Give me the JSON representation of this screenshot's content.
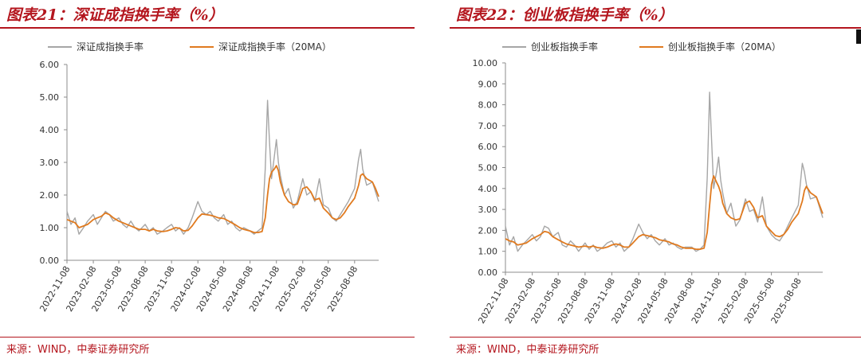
{
  "charts": [
    {
      "title": "图表21：深证成指换手率（%）",
      "source": "来源：WIND，中泰证券研究所",
      "chart_data": {
        "type": "line",
        "title": "图表21：深证成指换手率（%）",
        "xlabel": "",
        "ylabel": "",
        "ylim": [
          0,
          6
        ],
        "yticks": [
          "0.00",
          "1.00",
          "2.00",
          "3.00",
          "4.00",
          "5.00",
          "6.00"
        ],
        "x_range": [
          "2022-11-08",
          "2025-10-31"
        ],
        "xticks": [
          "2022-11-08",
          "2023-02-08",
          "2023-05-08",
          "2023-08-08",
          "2023-11-08",
          "2024-02-08",
          "2024-05-08",
          "2024-08-08",
          "2024-11-08",
          "2025-02-08",
          "2025-05-08",
          "2025-08-08"
        ],
        "grid": false,
        "legend": "top",
        "series": [
          {
            "name": "深证成指换手率",
            "color": "#a6a6a6",
            "x": [
              "2022-11-08",
              "2022-11-22",
              "2022-12-06",
              "2022-12-20",
              "2023-01-05",
              "2023-01-19",
              "2023-02-08",
              "2023-02-22",
              "2023-03-08",
              "2023-03-22",
              "2023-04-05",
              "2023-04-19",
              "2023-05-08",
              "2023-05-22",
              "2023-06-05",
              "2023-06-19",
              "2023-07-03",
              "2023-07-17",
              "2023-08-08",
              "2023-08-22",
              "2023-09-05",
              "2023-09-19",
              "2023-10-09",
              "2023-10-23",
              "2023-11-08",
              "2023-11-22",
              "2023-12-06",
              "2023-12-20",
              "2024-01-05",
              "2024-01-19",
              "2024-02-08",
              "2024-02-22",
              "2024-03-08",
              "2024-03-22",
              "2024-04-05",
              "2024-04-19",
              "2024-05-08",
              "2024-05-22",
              "2024-06-05",
              "2024-06-19",
              "2024-07-03",
              "2024-07-17",
              "2024-08-08",
              "2024-08-22",
              "2024-09-05",
              "2024-09-19",
              "2024-09-30",
              "2024-10-08",
              "2024-10-15",
              "2024-10-22",
              "2024-11-01",
              "2024-11-08",
              "2024-11-15",
              "2024-11-22",
              "2024-12-06",
              "2024-12-20",
              "2025-01-06",
              "2025-01-20",
              "2025-02-08",
              "2025-02-22",
              "2025-03-08",
              "2025-03-22",
              "2025-04-07",
              "2025-04-21",
              "2025-05-08",
              "2025-05-22",
              "2025-06-05",
              "2025-06-19",
              "2025-07-03",
              "2025-07-17",
              "2025-08-08",
              "2025-08-22",
              "2025-08-29",
              "2025-09-05",
              "2025-09-19",
              "2025-10-09",
              "2025-10-20",
              "2025-10-31"
            ],
            "values": [
              1.5,
              1.1,
              1.3,
              0.8,
              1.0,
              1.2,
              1.4,
              1.1,
              1.3,
              1.5,
              1.4,
              1.2,
              1.3,
              1.1,
              1.0,
              1.2,
              1.0,
              0.9,
              1.1,
              0.9,
              1.0,
              0.8,
              0.9,
              1.0,
              1.1,
              0.9,
              1.0,
              0.8,
              1.0,
              1.3,
              1.8,
              1.5,
              1.4,
              1.5,
              1.3,
              1.2,
              1.4,
              1.1,
              1.2,
              1.0,
              0.9,
              1.0,
              0.9,
              0.8,
              0.9,
              1.0,
              2.8,
              4.9,
              3.6,
              2.5,
              3.2,
              3.7,
              3.0,
              2.6,
              2.0,
              2.2,
              1.6,
              1.8,
              2.5,
              2.0,
              2.1,
              1.8,
              2.5,
              1.7,
              1.6,
              1.3,
              1.2,
              1.4,
              1.6,
              1.8,
              2.2,
              3.1,
              3.4,
              2.8,
              2.3,
              2.4,
              2.1,
              1.8
            ]
          },
          {
            "name": "深证成指换手率（20MA）",
            "color": "#e07a1f",
            "x": [
              "2022-11-08",
              "2022-11-22",
              "2022-12-06",
              "2022-12-20",
              "2023-01-05",
              "2023-01-19",
              "2023-02-08",
              "2023-02-22",
              "2023-03-08",
              "2023-03-22",
              "2023-04-05",
              "2023-04-19",
              "2023-05-08",
              "2023-05-22",
              "2023-06-05",
              "2023-06-19",
              "2023-07-03",
              "2023-07-17",
              "2023-08-08",
              "2023-08-22",
              "2023-09-05",
              "2023-09-19",
              "2023-10-09",
              "2023-10-23",
              "2023-11-08",
              "2023-11-22",
              "2023-12-06",
              "2023-12-20",
              "2024-01-05",
              "2024-01-19",
              "2024-02-08",
              "2024-02-22",
              "2024-03-08",
              "2024-03-22",
              "2024-04-05",
              "2024-04-19",
              "2024-05-08",
              "2024-05-22",
              "2024-06-05",
              "2024-06-19",
              "2024-07-03",
              "2024-07-17",
              "2024-08-08",
              "2024-08-22",
              "2024-09-05",
              "2024-09-19",
              "2024-09-30",
              "2024-10-08",
              "2024-10-15",
              "2024-10-22",
              "2024-11-01",
              "2024-11-08",
              "2024-11-15",
              "2024-11-22",
              "2024-12-06",
              "2024-12-20",
              "2025-01-06",
              "2025-01-20",
              "2025-02-08",
              "2025-02-22",
              "2025-03-08",
              "2025-03-22",
              "2025-04-07",
              "2025-04-21",
              "2025-05-08",
              "2025-05-22",
              "2025-06-05",
              "2025-06-19",
              "2025-07-03",
              "2025-07-17",
              "2025-08-08",
              "2025-08-22",
              "2025-08-29",
              "2025-09-05",
              "2025-09-19",
              "2025-10-09",
              "2025-10-20",
              "2025-10-31"
            ],
            "values": [
              1.25,
              1.2,
              1.15,
              1.0,
              1.05,
              1.1,
              1.25,
              1.3,
              1.35,
              1.45,
              1.4,
              1.3,
              1.2,
              1.15,
              1.1,
              1.05,
              1.0,
              0.95,
              0.95,
              0.9,
              0.95,
              0.9,
              0.88,
              0.9,
              0.95,
              1.0,
              0.98,
              0.9,
              0.92,
              1.05,
              1.3,
              1.42,
              1.4,
              1.38,
              1.35,
              1.3,
              1.28,
              1.22,
              1.15,
              1.08,
              1.0,
              0.95,
              0.9,
              0.85,
              0.85,
              0.88,
              1.3,
              2.0,
              2.5,
              2.7,
              2.8,
              2.9,
              2.75,
              2.4,
              2.0,
              1.8,
              1.7,
              1.72,
              2.2,
              2.25,
              2.1,
              1.85,
              1.9,
              1.6,
              1.45,
              1.3,
              1.25,
              1.3,
              1.45,
              1.65,
              1.9,
              2.3,
              2.6,
              2.65,
              2.5,
              2.4,
              2.2,
              1.95
            ]
          }
        ]
      }
    },
    {
      "title": "图表22：创业板指换手率（%）",
      "source": "来源：WIND，中泰证券研究所",
      "chart_data": {
        "type": "line",
        "title": "图表22：创业板指换手率（%）",
        "xlabel": "",
        "ylabel": "",
        "ylim": [
          0,
          10
        ],
        "yticks": [
          "0.00",
          "1.00",
          "2.00",
          "3.00",
          "4.00",
          "5.00",
          "6.00",
          "7.00",
          "8.00",
          "9.00",
          "10.00"
        ],
        "x_range": [
          "2022-11-08",
          "2025-10-31"
        ],
        "xticks": [
          "2022-11-08",
          "2023-02-08",
          "2023-05-08",
          "2023-08-08",
          "2023-11-08",
          "2024-02-08",
          "2024-05-08",
          "2024-08-08",
          "2024-11-08",
          "2025-02-08",
          "2025-05-08",
          "2025-08-08"
        ],
        "grid": false,
        "legend": "top",
        "series": [
          {
            "name": "创业板指换手率",
            "color": "#a6a6a6",
            "x": [
              "2022-11-08",
              "2022-11-22",
              "2022-12-06",
              "2022-12-20",
              "2023-01-05",
              "2023-01-19",
              "2023-02-08",
              "2023-02-22",
              "2023-03-08",
              "2023-03-22",
              "2023-04-05",
              "2023-04-19",
              "2023-05-08",
              "2023-05-22",
              "2023-06-05",
              "2023-06-19",
              "2023-07-03",
              "2023-07-17",
              "2023-08-08",
              "2023-08-22",
              "2023-09-05",
              "2023-09-19",
              "2023-10-09",
              "2023-10-23",
              "2023-11-08",
              "2023-11-22",
              "2023-12-06",
              "2023-12-20",
              "2024-01-05",
              "2024-01-19",
              "2024-02-08",
              "2024-02-22",
              "2024-03-08",
              "2024-03-22",
              "2024-04-05",
              "2024-04-19",
              "2024-05-08",
              "2024-05-22",
              "2024-06-05",
              "2024-06-19",
              "2024-07-03",
              "2024-07-17",
              "2024-08-08",
              "2024-08-22",
              "2024-09-05",
              "2024-09-19",
              "2024-09-30",
              "2024-10-08",
              "2024-10-15",
              "2024-10-22",
              "2024-11-01",
              "2024-11-08",
              "2024-11-15",
              "2024-11-22",
              "2024-12-06",
              "2024-12-20",
              "2025-01-06",
              "2025-01-20",
              "2025-02-08",
              "2025-02-22",
              "2025-03-08",
              "2025-03-22",
              "2025-04-07",
              "2025-04-21",
              "2025-05-08",
              "2025-05-22",
              "2025-06-05",
              "2025-06-19",
              "2025-07-03",
              "2025-07-17",
              "2025-08-08",
              "2025-08-22",
              "2025-08-29",
              "2025-09-05",
              "2025-09-19",
              "2025-10-09",
              "2025-10-20",
              "2025-10-31"
            ],
            "values": [
              2.2,
              1.3,
              1.7,
              1.0,
              1.3,
              1.5,
              1.8,
              1.5,
              1.7,
              2.2,
              2.1,
              1.7,
              1.9,
              1.3,
              1.2,
              1.5,
              1.3,
              1.0,
              1.4,
              1.1,
              1.3,
              1.0,
              1.2,
              1.4,
              1.5,
              1.2,
              1.4,
              1.0,
              1.2,
              1.6,
              2.3,
              1.9,
              1.6,
              1.8,
              1.5,
              1.3,
              1.6,
              1.3,
              1.4,
              1.2,
              1.1,
              1.2,
              1.2,
              1.0,
              1.1,
              1.3,
              4.5,
              8.6,
              6.3,
              4.0,
              4.8,
              5.5,
              4.4,
              3.8,
              2.8,
              3.3,
              2.2,
              2.5,
              3.5,
              2.9,
              3.0,
              2.4,
              3.6,
              2.2,
              1.8,
              1.6,
              1.5,
              1.8,
              2.2,
              2.6,
              3.2,
              5.2,
              4.8,
              4.2,
              3.5,
              3.6,
              3.1,
              2.6
            ]
          },
          {
            "name": "创业板指换手率（20MA）",
            "color": "#e07a1f",
            "x": [
              "2022-11-08",
              "2022-11-22",
              "2022-12-06",
              "2022-12-20",
              "2023-01-05",
              "2023-01-19",
              "2023-02-08",
              "2023-02-22",
              "2023-03-08",
              "2023-03-22",
              "2023-04-05",
              "2023-04-19",
              "2023-05-08",
              "2023-05-22",
              "2023-06-05",
              "2023-06-19",
              "2023-07-03",
              "2023-07-17",
              "2023-08-08",
              "2023-08-22",
              "2023-09-05",
              "2023-09-19",
              "2023-10-09",
              "2023-10-23",
              "2023-11-08",
              "2023-11-22",
              "2023-12-06",
              "2023-12-20",
              "2024-01-05",
              "2024-01-19",
              "2024-02-08",
              "2024-02-22",
              "2024-03-08",
              "2024-03-22",
              "2024-04-05",
              "2024-04-19",
              "2024-05-08",
              "2024-05-22",
              "2024-06-05",
              "2024-06-19",
              "2024-07-03",
              "2024-07-17",
              "2024-08-08",
              "2024-08-22",
              "2024-09-05",
              "2024-09-19",
              "2024-09-30",
              "2024-10-08",
              "2024-10-15",
              "2024-10-22",
              "2024-11-01",
              "2024-11-08",
              "2024-11-15",
              "2024-11-22",
              "2024-12-06",
              "2024-12-20",
              "2025-01-06",
              "2025-01-20",
              "2025-02-08",
              "2025-02-22",
              "2025-03-08",
              "2025-03-22",
              "2025-04-07",
              "2025-04-21",
              "2025-05-08",
              "2025-05-22",
              "2025-06-05",
              "2025-06-19",
              "2025-07-03",
              "2025-07-17",
              "2025-08-08",
              "2025-08-22",
              "2025-08-29",
              "2025-09-05",
              "2025-09-19",
              "2025-10-09",
              "2025-10-20",
              "2025-10-31"
            ],
            "values": [
              1.6,
              1.5,
              1.45,
              1.3,
              1.35,
              1.4,
              1.6,
              1.7,
              1.8,
              1.95,
              1.9,
              1.7,
              1.55,
              1.45,
              1.35,
              1.3,
              1.25,
              1.2,
              1.25,
              1.2,
              1.25,
              1.18,
              1.15,
              1.2,
              1.3,
              1.35,
              1.3,
              1.2,
              1.2,
              1.4,
              1.7,
              1.8,
              1.75,
              1.7,
              1.65,
              1.55,
              1.5,
              1.45,
              1.35,
              1.3,
              1.2,
              1.15,
              1.15,
              1.1,
              1.1,
              1.15,
              1.9,
              3.2,
              4.2,
              4.6,
              4.3,
              4.1,
              3.8,
              3.3,
              2.8,
              2.6,
              2.5,
              2.55,
              3.3,
              3.4,
              3.1,
              2.6,
              2.7,
              2.2,
              1.95,
              1.75,
              1.7,
              1.8,
              2.05,
              2.4,
              2.8,
              3.4,
              3.9,
              4.1,
              3.8,
              3.6,
              3.2,
              2.8
            ]
          }
        ]
      }
    }
  ]
}
